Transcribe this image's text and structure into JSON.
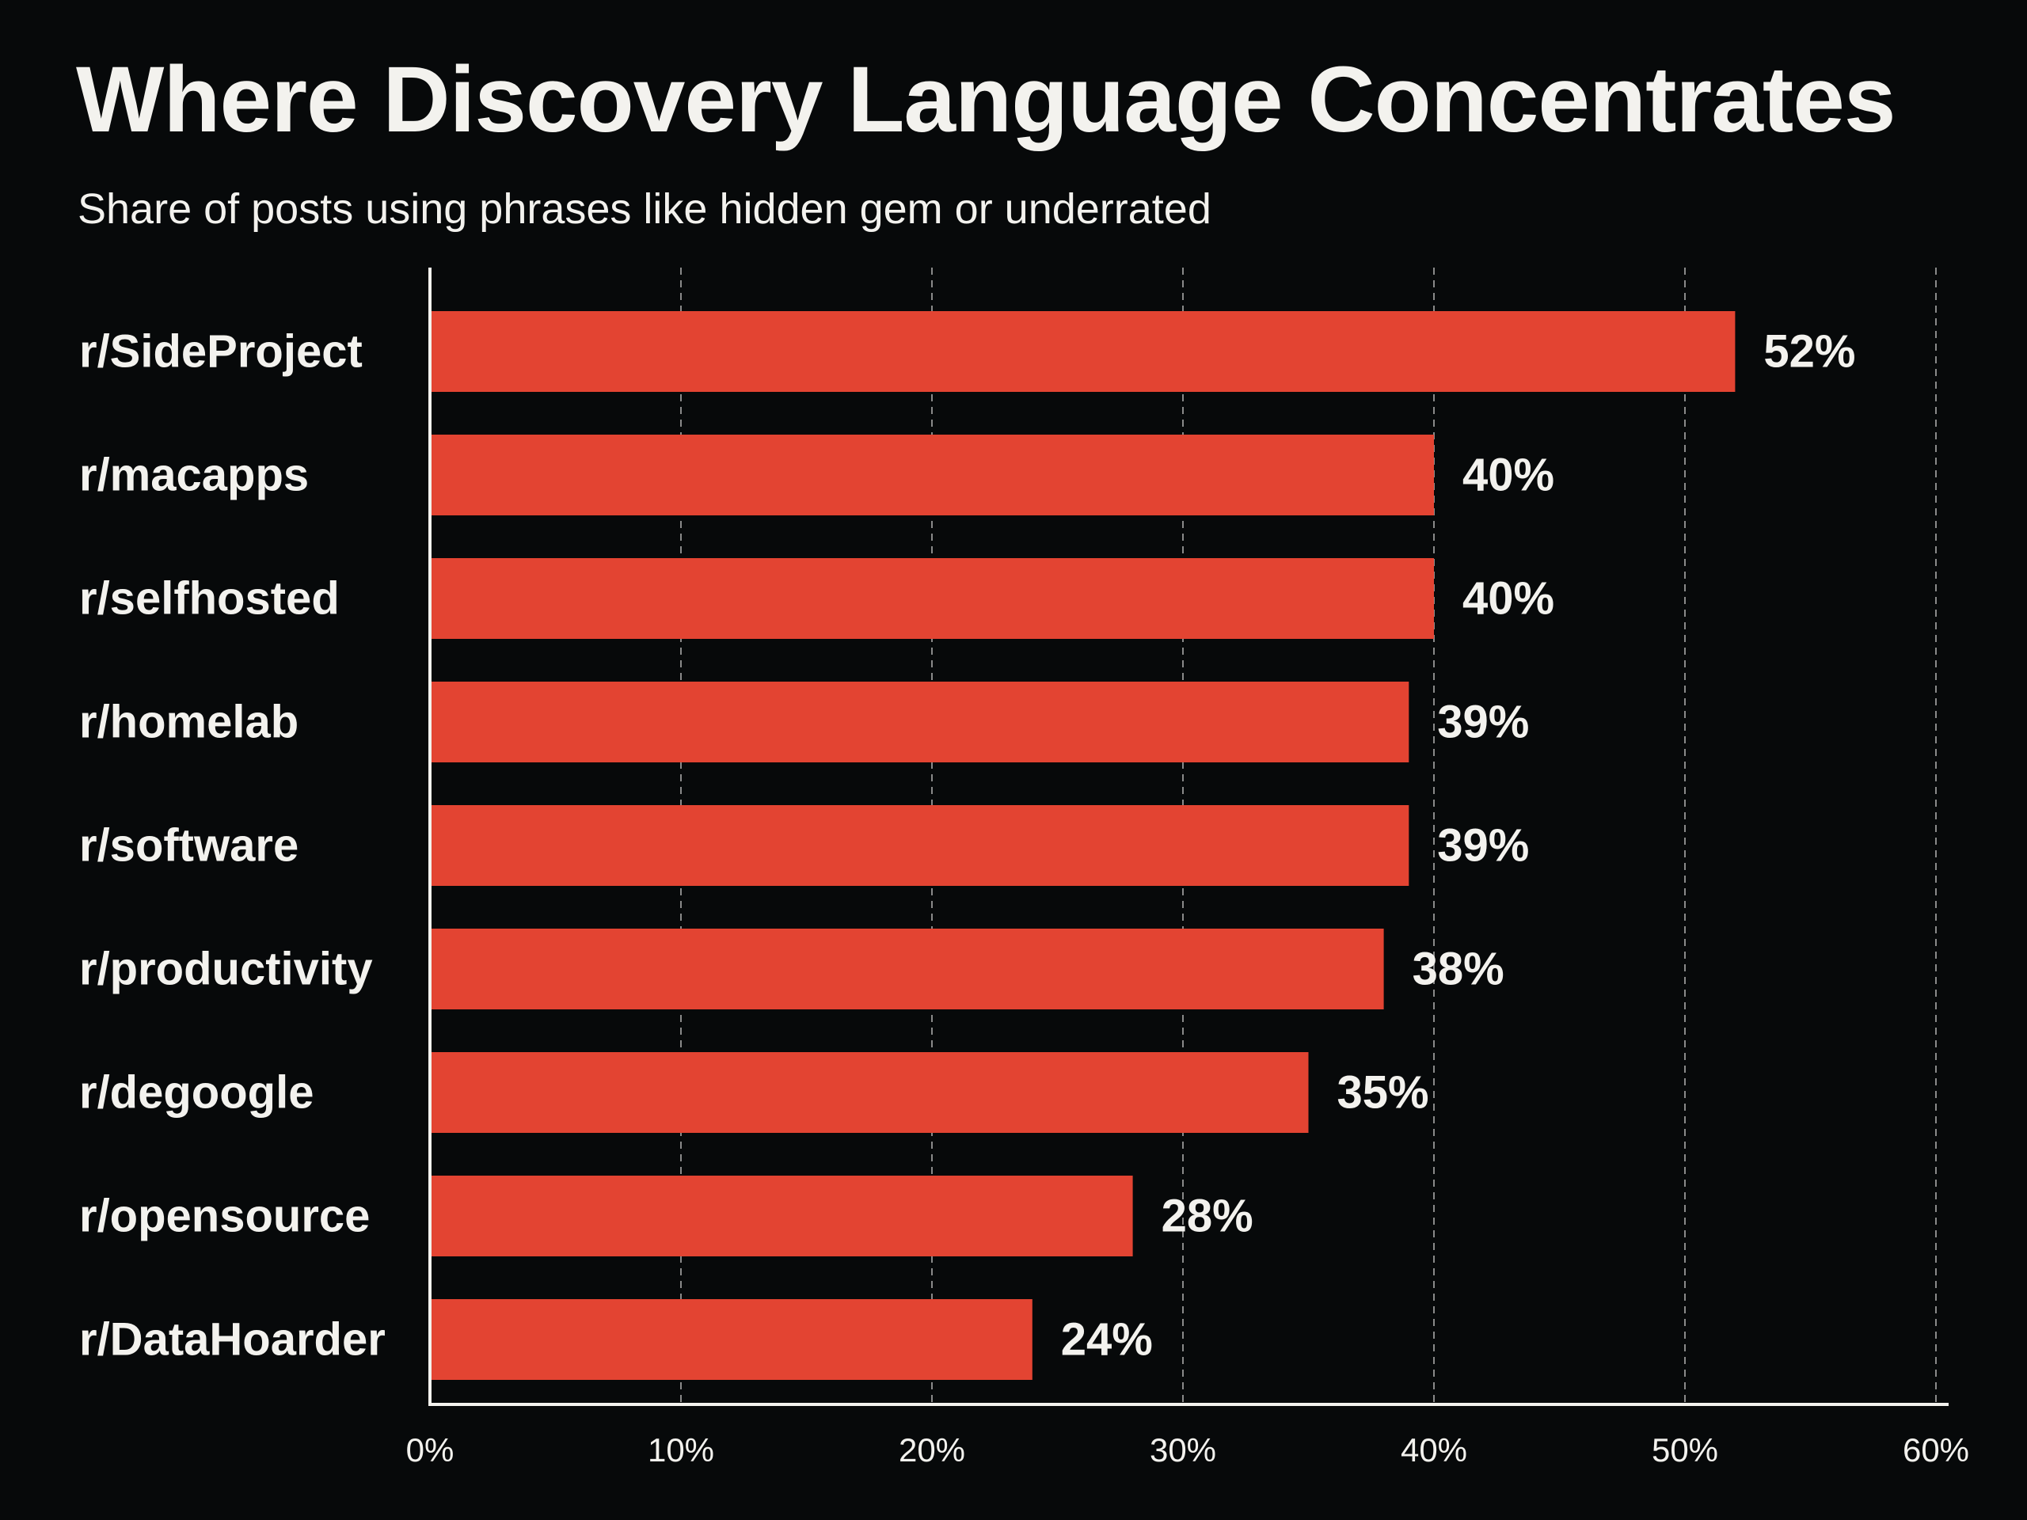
{
  "chart_data": {
    "type": "bar",
    "orientation": "horizontal",
    "title": "Where Discovery Language Concentrates",
    "subtitle": "Share of posts using phrases like hidden gem or underrated",
    "categories": [
      "r/SideProject",
      "r/macapps",
      "r/selfhosted",
      "r/homelab",
      "r/software",
      "r/productivity",
      "r/degoogle",
      "r/opensource",
      "r/DataHoarder"
    ],
    "values": [
      52,
      40,
      40,
      39,
      39,
      38,
      35,
      28,
      24
    ],
    "value_labels": [
      "52%",
      "40%",
      "40%",
      "39%",
      "39%",
      "38%",
      "35%",
      "28%",
      "24%"
    ],
    "xlim": [
      0,
      60
    ],
    "xticks": [
      0,
      10,
      20,
      30,
      40,
      50,
      60
    ],
    "xtick_labels": [
      "0%",
      "10%",
      "20%",
      "30%",
      "40%",
      "50%",
      "60%"
    ],
    "grid": "vertical dashed",
    "colors": {
      "background": "#07090a",
      "bar": "#e34432",
      "text": "#f3f2ee",
      "grid": "#8a8a8a"
    }
  }
}
